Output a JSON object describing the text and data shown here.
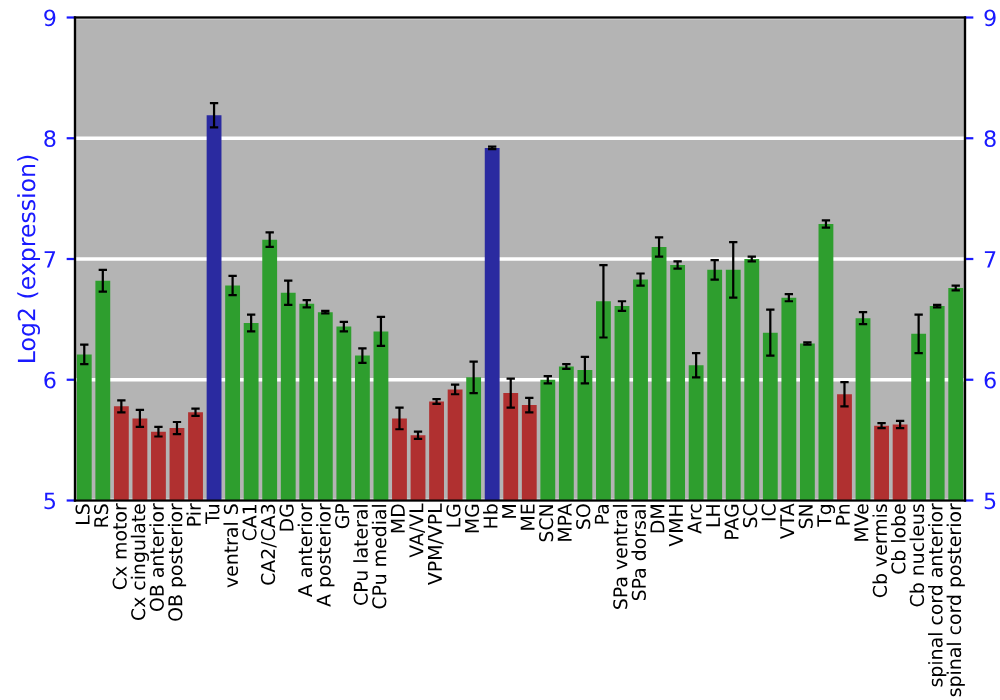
{
  "chart_data": {
    "type": "bar",
    "ylabel": "Log2 (expression)",
    "categories": [
      "LS",
      "RS",
      "Cx motor",
      "Cx cingulate",
      "OB anterior",
      "OB posterior",
      "Pir",
      "Tu",
      "ventral S",
      "CA1",
      "CA2/CA3",
      "DG",
      "A anterior",
      "A posterior",
      "GP",
      "CPu lateral",
      "CPu medial",
      "MD",
      "VA/VL",
      "VPM/VPL",
      "LG",
      "MG",
      "Hb",
      "M",
      "ME",
      "SCN",
      "MPA",
      "SO",
      "Pa",
      "SPa ventral",
      "SPa dorsal",
      "DM",
      "VMH",
      "Arc",
      "LH",
      "PAG",
      "SC",
      "IC",
      "VTA",
      "SN",
      "Tg",
      "Pn",
      "MVe",
      "Cb vermis",
      "Cb lobe",
      "Cb nucleus",
      "spinal cord anterior",
      "spinal cord posterior"
    ],
    "values": [
      6.21,
      6.82,
      5.78,
      5.68,
      5.57,
      5.6,
      5.73,
      8.19,
      6.78,
      6.47,
      7.16,
      6.72,
      6.63,
      6.56,
      6.44,
      6.2,
      6.4,
      5.68,
      5.54,
      5.82,
      5.92,
      6.02,
      7.92,
      5.89,
      5.79,
      6.0,
      6.11,
      6.08,
      6.65,
      6.61,
      6.83,
      7.1,
      6.95,
      6.12,
      6.91,
      6.91,
      7.0,
      6.39,
      6.68,
      6.3,
      7.29,
      5.88,
      6.51,
      5.62,
      5.63,
      6.38,
      6.61,
      6.76
    ],
    "errors": [
      0.08,
      0.09,
      0.05,
      0.07,
      0.04,
      0.05,
      0.03,
      0.1,
      0.08,
      0.07,
      0.06,
      0.1,
      0.03,
      0.01,
      0.04,
      0.06,
      0.12,
      0.09,
      0.03,
      0.02,
      0.04,
      0.13,
      0.01,
      0.12,
      0.06,
      0.03,
      0.02,
      0.11,
      0.3,
      0.04,
      0.05,
      0.08,
      0.03,
      0.1,
      0.08,
      0.23,
      0.02,
      0.19,
      0.03,
      0.01,
      0.03,
      0.1,
      0.05,
      0.02,
      0.03,
      0.16,
      0.01,
      0.02
    ],
    "colors": [
      "#2e9e2e",
      "#2e9e2e",
      "#b03030",
      "#b03030",
      "#b03030",
      "#b03030",
      "#b03030",
      "#2a2aa0",
      "#2e9e2e",
      "#2e9e2e",
      "#2e9e2e",
      "#2e9e2e",
      "#2e9e2e",
      "#2e9e2e",
      "#2e9e2e",
      "#2e9e2e",
      "#2e9e2e",
      "#b03030",
      "#b03030",
      "#b03030",
      "#b03030",
      "#2e9e2e",
      "#2a2aa0",
      "#b03030",
      "#b03030",
      "#2e9e2e",
      "#2e9e2e",
      "#2e9e2e",
      "#2e9e2e",
      "#2e9e2e",
      "#2e9e2e",
      "#2e9e2e",
      "#2e9e2e",
      "#2e9e2e",
      "#2e9e2e",
      "#2e9e2e",
      "#2e9e2e",
      "#2e9e2e",
      "#2e9e2e",
      "#2e9e2e",
      "#2e9e2e",
      "#b03030",
      "#2e9e2e",
      "#b03030",
      "#b03030",
      "#2e9e2e",
      "#2e9e2e",
      "#2e9e2e"
    ],
    "ylim": [
      5,
      9
    ],
    "yticks": [
      5,
      6,
      7,
      8,
      9
    ],
    "y2lim": [
      5,
      9
    ],
    "y2ticks": [
      5,
      6,
      7,
      8,
      9
    ],
    "grid": "y"
  }
}
